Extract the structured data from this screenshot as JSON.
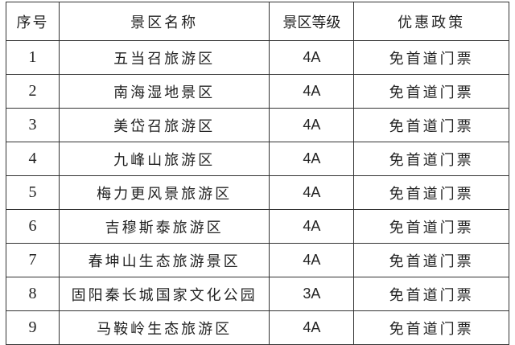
{
  "headers": [
    "序号",
    "景区名称",
    "景区等级",
    "优惠政策"
  ],
  "rows": [
    {
      "no": "1",
      "name": "五当召旅游区",
      "level": "4A",
      "policy": "免首道门票"
    },
    {
      "no": "2",
      "name": "南海湿地景区",
      "level": "4A",
      "policy": "免首道门票"
    },
    {
      "no": "3",
      "name": "美岱召旅游区",
      "level": "4A",
      "policy": "免首道门票"
    },
    {
      "no": "4",
      "name": "九峰山旅游区",
      "level": "4A",
      "policy": "免首道门票"
    },
    {
      "no": "5",
      "name": "梅力更风景旅游区",
      "level": "4A",
      "policy": "免首道门票"
    },
    {
      "no": "6",
      "name": "吉穆斯泰旅游区",
      "level": "4A",
      "policy": "免首道门票"
    },
    {
      "no": "7",
      "name": "春坤山生态旅游景区",
      "level": "4A",
      "policy": "免首道门票"
    },
    {
      "no": "8",
      "name": "固阳秦长城国家文化公园",
      "level": "3A",
      "policy": "免首道门票"
    },
    {
      "no": "9",
      "name": "马鞍岭生态旅游区",
      "level": "4A",
      "policy": "免首道门票"
    }
  ]
}
